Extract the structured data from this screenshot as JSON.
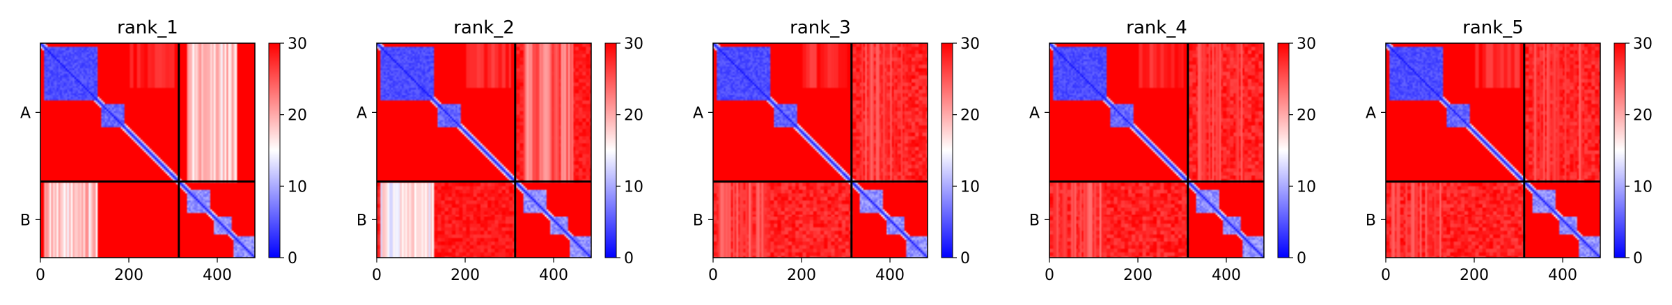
{
  "figure": {
    "colors": {
      "low": "#0000ff",
      "mid": "#ffffff",
      "high": "#ff0000",
      "chain_line": "#000000"
    },
    "colormap": "bwr",
    "xticks": [
      0,
      200,
      400
    ],
    "colorbar_ticks": [
      0,
      10,
      20,
      30
    ],
    "colorbar_range": [
      0,
      30
    ]
  },
  "chart_data": [
    {
      "type": "heatmap",
      "title": "rank_1",
      "x_range": [
        0,
        485
      ],
      "y_range": [
        485,
        0
      ],
      "chain_boundary": 313,
      "y_ticklabels": [
        "A",
        "B"
      ],
      "value_range": [
        0,
        30
      ],
      "features": {
        "ab_block_level": 30,
        "a_stripe_left_corner": 14,
        "b_stripe_left_corner": 14
      }
    },
    {
      "type": "heatmap",
      "title": "rank_2",
      "x_range": [
        0,
        485
      ],
      "y_range": [
        485,
        0
      ],
      "chain_boundary": 313,
      "y_ticklabels": [
        "A",
        "B"
      ],
      "value_range": [
        0,
        30
      ],
      "features": {
        "ab_block_level": 27,
        "a_stripe_left_corner": 20,
        "b_stripe_left_corner": 12
      }
    },
    {
      "type": "heatmap",
      "title": "rank_3",
      "x_range": [
        0,
        485
      ],
      "y_range": [
        485,
        0
      ],
      "chain_boundary": 313,
      "y_ticklabels": [
        "A",
        "B"
      ],
      "value_range": [
        0,
        30
      ],
      "features": {
        "ab_block_level": 26,
        "a_stripe_left_corner": 24,
        "b_stripe_left_corner": 22
      }
    },
    {
      "type": "heatmap",
      "title": "rank_4",
      "x_range": [
        0,
        485
      ],
      "y_range": [
        485,
        0
      ],
      "chain_boundary": 313,
      "y_ticklabels": [
        "A",
        "B"
      ],
      "value_range": [
        0,
        30
      ],
      "features": {
        "ab_block_level": 26,
        "a_stripe_left_corner": 24,
        "b_stripe_left_corner": 23
      }
    },
    {
      "type": "heatmap",
      "title": "rank_5",
      "x_range": [
        0,
        485
      ],
      "y_range": [
        485,
        0
      ],
      "chain_boundary": 313,
      "y_ticklabels": [
        "A",
        "B"
      ],
      "value_range": [
        0,
        30
      ],
      "features": {
        "ab_block_level": 26,
        "a_stripe_left_corner": 24,
        "b_stripe_left_corner": 24
      }
    }
  ]
}
